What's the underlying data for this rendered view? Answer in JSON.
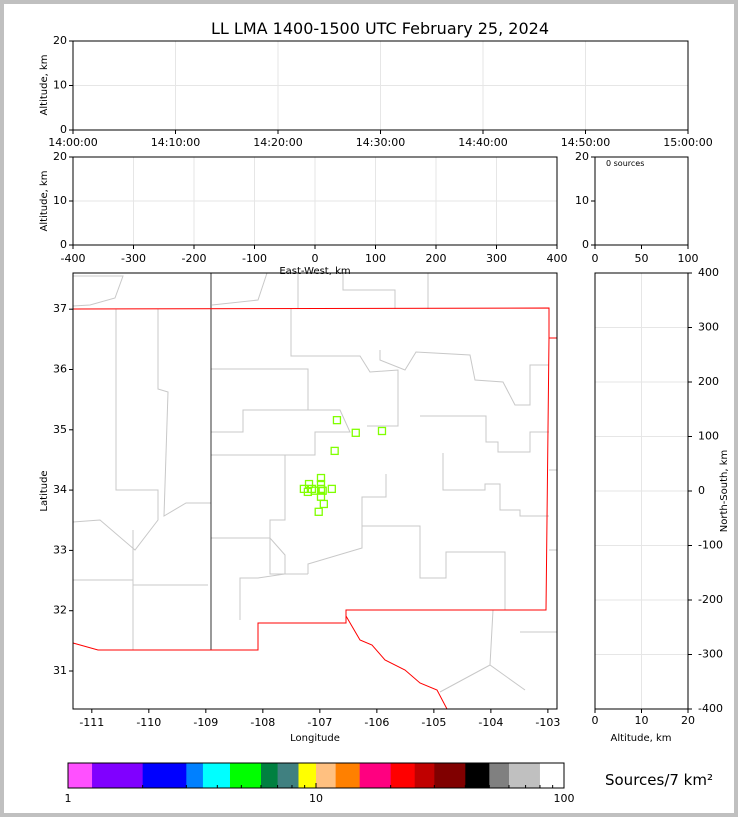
{
  "title": "LL LMA 1400-1500 UTC February 25, 2024",
  "chart_data": [
    {
      "type": "scatter",
      "panel": "time-altitude",
      "ylabel": "Altitude, km",
      "ylim": [
        0,
        20
      ],
      "yticks": [
        "0",
        "10",
        "20"
      ],
      "xticks": [
        "14:00:00",
        "14:10:00",
        "14:20:00",
        "14:30:00",
        "14:40:00",
        "14:50:00",
        "15:00:00"
      ],
      "grid": true,
      "points": []
    },
    {
      "type": "scatter",
      "panel": "ew-altitude",
      "xlabel": "East-West, km",
      "ylabel": "Altitude, km",
      "xlim": [
        -400,
        400
      ],
      "ylim": [
        0,
        20
      ],
      "xticks": [
        "-400",
        "-300",
        "-200",
        "-100",
        "0",
        "100",
        "200",
        "300",
        "400"
      ],
      "yticks": [
        "0",
        "10",
        "20"
      ],
      "grid": true,
      "points": []
    },
    {
      "type": "bar",
      "panel": "altitude-histogram",
      "annotation": "0 sources",
      "xlim": [
        0,
        100
      ],
      "ylim": [
        0,
        20
      ],
      "xticks": [
        "0",
        "50",
        "100"
      ],
      "yticks": [
        "0",
        "10",
        "20"
      ],
      "values": []
    },
    {
      "type": "scatter",
      "panel": "plan-view-map",
      "xlabel": "Longitude",
      "ylabel": "Latitude",
      "xlim": [
        -111.33,
        -102.84
      ],
      "ylim": [
        30.37,
        37.6
      ],
      "xticks": [
        "-111",
        "-110",
        "-109",
        "-108",
        "-107",
        "-106",
        "-105",
        "-104",
        "-103"
      ],
      "yticks": [
        "31",
        "32",
        "33",
        "34",
        "35",
        "36",
        "37"
      ],
      "marker_color": "#80ff00",
      "points": [
        [
          -106.7,
          35.16
        ],
        [
          -106.37,
          34.95
        ],
        [
          -105.91,
          34.98
        ],
        [
          -106.74,
          34.65
        ],
        [
          -106.98,
          34.2
        ],
        [
          -107.19,
          34.1
        ],
        [
          -106.98,
          34.1
        ],
        [
          -107.28,
          34.02
        ],
        [
          -107.14,
          34.02
        ],
        [
          -106.98,
          34.02
        ],
        [
          -107.21,
          33.97
        ],
        [
          -107.09,
          33.99
        ],
        [
          -106.95,
          33.99
        ],
        [
          -106.79,
          34.02
        ],
        [
          -106.98,
          33.89
        ],
        [
          -106.93,
          33.77
        ],
        [
          -107.02,
          33.64
        ]
      ]
    },
    {
      "type": "scatter",
      "panel": "ns-altitude",
      "xlabel": "Altitude, km",
      "ylabel": "North-South, km",
      "xlim": [
        0,
        20
      ],
      "ylim": [
        -400,
        400
      ],
      "xticks": [
        "0",
        "10",
        "20"
      ],
      "yticks": [
        "-400",
        "-300",
        "-200",
        "-100",
        "0",
        "100",
        "200",
        "300",
        "400"
      ],
      "grid": true,
      "points": []
    }
  ],
  "colorbar": {
    "label": "Sources/7 km²",
    "scale": "log",
    "range": [
      1,
      100
    ],
    "tick_labels": [
      "1",
      "10",
      "100"
    ],
    "colors": [
      "#ff50ff",
      "#8000ff",
      "#0000ff",
      "#0080ff",
      "#00ffff",
      "#00ff00",
      "#008040",
      "#408080",
      "#ffff00",
      "#ffc080",
      "#ff8000",
      "#ff0080",
      "#ff0000",
      "#c00000",
      "#800000",
      "#000000",
      "#808080",
      "#c0c0c0",
      "#ffffff"
    ]
  }
}
